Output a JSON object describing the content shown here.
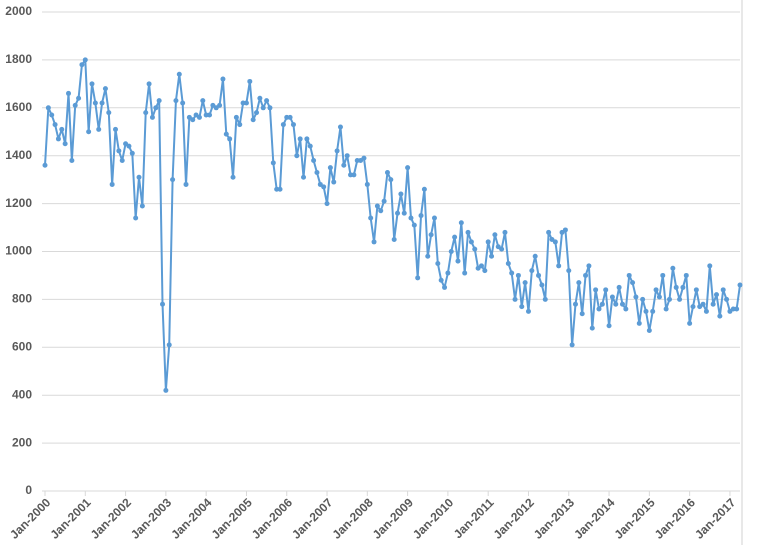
{
  "chart_data": {
    "type": "line",
    "categories": [
      "Jan-2000",
      null,
      null,
      null,
      null,
      null,
      null,
      null,
      null,
      null,
      null,
      null,
      "Jan-2001",
      null,
      null,
      null,
      null,
      null,
      null,
      null,
      null,
      null,
      null,
      null,
      "Jan-2002",
      null,
      null,
      null,
      null,
      null,
      null,
      null,
      null,
      null,
      null,
      null,
      "Jan-2003",
      null,
      null,
      null,
      null,
      null,
      null,
      null,
      null,
      null,
      null,
      null,
      "Jan-2004",
      null,
      null,
      null,
      null,
      null,
      null,
      null,
      null,
      null,
      null,
      null,
      "Jan-2005",
      null,
      null,
      null,
      null,
      null,
      null,
      null,
      null,
      null,
      null,
      null,
      "Jan-2006",
      null,
      null,
      null,
      null,
      null,
      null,
      null,
      null,
      null,
      null,
      null,
      "Jan-2007",
      null,
      null,
      null,
      null,
      null,
      null,
      null,
      null,
      null,
      null,
      null,
      "Jan-2008",
      null,
      null,
      null,
      null,
      null,
      null,
      null,
      null,
      null,
      null,
      null,
      "Jan-2009",
      null,
      null,
      null,
      null,
      null,
      null,
      null,
      null,
      null,
      null,
      null,
      "Jan-2010",
      null,
      null,
      null,
      null,
      null,
      null,
      null,
      null,
      null,
      null,
      null,
      "Jan-2011",
      null,
      null,
      null,
      null,
      null,
      null,
      null,
      null,
      null,
      null,
      null,
      "Jan-2012",
      null,
      null,
      null,
      null,
      null,
      null,
      null,
      null,
      null,
      null,
      null,
      "Jan-2013",
      null,
      null,
      null,
      null,
      null,
      null,
      null,
      null,
      null,
      null,
      null,
      "Jan-2014",
      null,
      null,
      null,
      null,
      null,
      null,
      null,
      null,
      null,
      null,
      null,
      "Jan-2015",
      null,
      null,
      null,
      null,
      null,
      null,
      null,
      null,
      null,
      null,
      null,
      "Jan-2016",
      null,
      null,
      null,
      null,
      null,
      null,
      null,
      null,
      null,
      null,
      null,
      "Jan-2017",
      null,
      null,
      null
    ],
    "values": [
      1360,
      1600,
      1570,
      1530,
      1470,
      1510,
      1450,
      1660,
      1380,
      1610,
      1640,
      1780,
      1800,
      1500,
      1700,
      1620,
      1510,
      1620,
      1680,
      1580,
      1280,
      1510,
      1420,
      1380,
      1450,
      1440,
      1410,
      1140,
      1310,
      1190,
      1580,
      1700,
      1560,
      1600,
      1630,
      780,
      420,
      610,
      1300,
      1630,
      1740,
      1620,
      1280,
      1560,
      1550,
      1570,
      1560,
      1630,
      1570,
      1570,
      1610,
      1600,
      1610,
      1720,
      1490,
      1470,
      1310,
      1560,
      1530,
      1620,
      1620,
      1710,
      1550,
      1580,
      1640,
      1600,
      1630,
      1600,
      1370,
      1260,
      1260,
      1530,
      1560,
      1560,
      1530,
      1400,
      1470,
      1310,
      1470,
      1440,
      1380,
      1330,
      1280,
      1270,
      1200,
      1350,
      1290,
      1420,
      1520,
      1360,
      1400,
      1320,
      1320,
      1380,
      1380,
      1390,
      1280,
      1140,
      1040,
      1190,
      1170,
      1210,
      1330,
      1300,
      1050,
      1160,
      1240,
      1160,
      1350,
      1140,
      1110,
      890,
      1150,
      1260,
      980,
      1070,
      1140,
      950,
      880,
      850,
      910,
      1000,
      1060,
      960,
      1120,
      910,
      1080,
      1040,
      1010,
      930,
      940,
      920,
      1040,
      980,
      1070,
      1020,
      1010,
      1080,
      950,
      910,
      800,
      900,
      770,
      870,
      750,
      920,
      980,
      900,
      860,
      800,
      1080,
      1050,
      1040,
      940,
      1080,
      1090,
      920,
      610,
      780,
      870,
      740,
      900,
      940,
      680,
      840,
      760,
      780,
      840,
      690,
      810,
      780,
      850,
      780,
      760,
      900,
      870,
      810,
      700,
      800,
      750,
      670,
      750,
      840,
      810,
      900,
      760,
      800,
      930,
      850,
      800,
      850,
      900,
      700,
      770,
      840,
      770,
      780,
      750,
      940,
      780,
      820,
      730,
      840,
      800,
      750,
      760,
      760,
      860
    ],
    "color": "#5b9bd5",
    "ylim": [
      0,
      2000
    ],
    "yticks": [
      0,
      200,
      400,
      600,
      800,
      1000,
      1200,
      1400,
      1600,
      1800,
      2000
    ],
    "grid": true
  }
}
